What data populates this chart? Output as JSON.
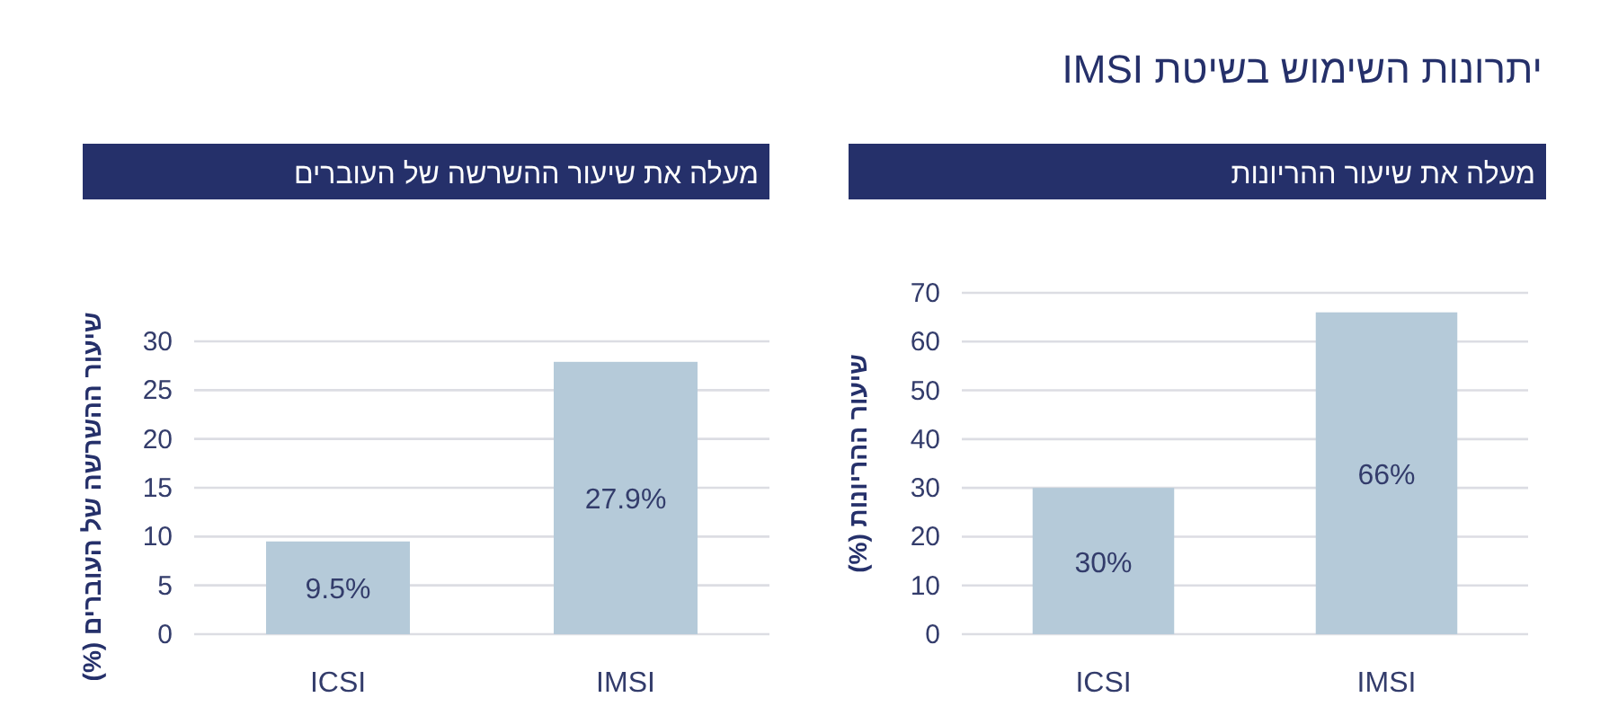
{
  "chart_data": [
    {
      "type": "bar",
      "title": "יתרונות השימוש בשיטת IMSI",
      "subtitle": "מעלה את שיעור ההריונות",
      "ylabel": "שיעור ההריונות (%)",
      "categories": [
        "ICSI",
        "IMSI"
      ],
      "values": [
        30,
        66
      ],
      "value_labels": [
        "30%",
        "66%"
      ],
      "color": "#b5cad9",
      "ylim": [
        0,
        70
      ],
      "yticks": [
        0,
        10,
        20,
        30,
        40,
        50,
        60,
        70
      ],
      "grid": "y"
    },
    {
      "type": "bar",
      "subtitle": "מעלה את שיעור ההשרשה של העוברים",
      "ylabel": "שיעור ההשרשה של העוברים (%)",
      "categories": [
        "ICSI",
        "IMSI"
      ],
      "values": [
        9.5,
        27.9
      ],
      "value_labels": [
        "9.5%",
        "27.9%"
      ],
      "color": "#b5cad9",
      "ylim": [
        0,
        30
      ],
      "yticks": [
        0,
        5,
        10,
        15,
        20,
        25,
        30
      ],
      "grid": "y"
    }
  ]
}
